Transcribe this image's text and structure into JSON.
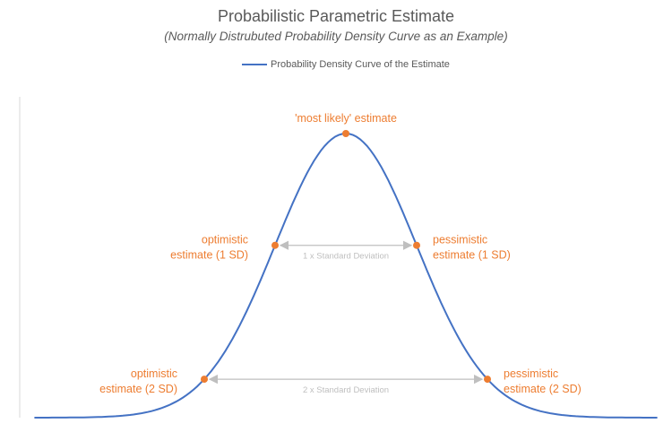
{
  "chart_data": {
    "type": "line",
    "title": "Probabilistic Parametric Estimate",
    "subtitle": "(Normally Distrubuted Probability Density Curve as an Example)",
    "legend": {
      "position": "top",
      "entries": [
        "Probability Density Curve of the Estimate"
      ]
    },
    "series": [
      {
        "name": "Probability Density Curve of the Estimate",
        "distribution": "normal",
        "mean": 0,
        "sd": 1,
        "x_range": [
          -4.4,
          4.4
        ],
        "color": "#4472c4"
      }
    ],
    "points": [
      {
        "x": -2,
        "label": [
          "optimistic",
          "estimate (2 SD)"
        ]
      },
      {
        "x": -1,
        "label": [
          "optimistic",
          "estimate (1 SD)"
        ]
      },
      {
        "x": 0,
        "label": [
          "'most likely' estimate"
        ]
      },
      {
        "x": 1,
        "label": [
          "pessimistic",
          "estimate (1 SD)"
        ]
      },
      {
        "x": 2,
        "label": [
          "pessimistic",
          "estimate (2 SD)"
        ]
      }
    ],
    "point_color": "#ed7d31",
    "annotations": [
      {
        "from": -1,
        "to": 1,
        "text": "1 x Standard Deviation"
      },
      {
        "from": -2,
        "to": 2,
        "text": "2 x Standard Deviation"
      }
    ],
    "annotation_color": "#bfbfbf",
    "grid": false
  }
}
